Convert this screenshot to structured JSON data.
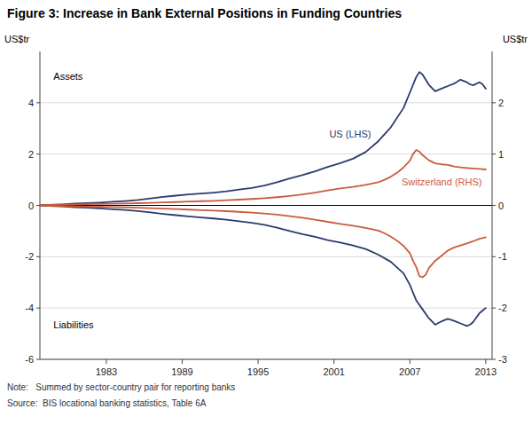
{
  "chart_data": {
    "type": "line",
    "title": "Figure 3: Increase in Bank External Positions in Funding Countries",
    "ylabel": "US$tr",
    "y2label": "US$tr",
    "annotations": [
      "Assets",
      "Liabilities",
      "US (LHS)",
      "Switzerland (RHS)"
    ],
    "note": "Note:   Summed by sector-country pair for reporting banks",
    "source": "Source:  BIS locational banking statistics, Table 6A",
    "xlim": [
      1977.75,
      2013.5
    ],
    "xticks": [
      1983,
      1989,
      1995,
      2001,
      2007,
      2013
    ],
    "ylim": [
      -6,
      6
    ],
    "yticks": [
      -6,
      -4,
      -2,
      0,
      2,
      4
    ],
    "y2lim": [
      -3,
      3
    ],
    "y2ticks": [
      -3,
      -2,
      -1,
      0,
      1,
      2
    ],
    "grid": true,
    "series": [
      {
        "color": "#2d3a6e",
        "axis": "y",
        "x": [
          1977.75,
          1978.5,
          1979.5,
          1980.5,
          1981.5,
          1982.5,
          1983.5,
          1984.5,
          1985.5,
          1986.5,
          1987.5,
          1988.5,
          1989.5,
          1990.5,
          1991.5,
          1992.5,
          1993.5,
          1994.5,
          1995.5,
          1996.5,
          1997.5,
          1998.5,
          1999.5,
          2000.5,
          2001.5,
          2002.5,
          2003.5,
          2004.5,
          2005.5,
          2006.5,
          2007.0,
          2007.5,
          2007.75,
          2008.0,
          2008.5,
          2009.0,
          2009.5,
          2010.0,
          2010.5,
          2011.0,
          2011.5,
          2011.75,
          2012.0,
          2012.5,
          2012.75,
          2013.0
        ],
        "values": [
          0.0,
          0.02,
          0.04,
          0.07,
          0.09,
          0.11,
          0.14,
          0.17,
          0.21,
          0.27,
          0.33,
          0.38,
          0.43,
          0.46,
          0.5,
          0.55,
          0.62,
          0.68,
          0.77,
          0.9,
          1.05,
          1.18,
          1.33,
          1.5,
          1.65,
          1.82,
          2.08,
          2.5,
          3.05,
          3.8,
          4.4,
          5.0,
          5.2,
          5.1,
          4.7,
          4.45,
          4.55,
          4.65,
          4.75,
          4.9,
          4.8,
          4.72,
          4.68,
          4.8,
          4.72,
          4.55
        ]
      },
      {
        "color": "#2d3a6e",
        "axis": "y",
        "x": [
          1977.75,
          1978.5,
          1979.5,
          1980.5,
          1981.5,
          1982.5,
          1983.5,
          1984.5,
          1985.5,
          1986.5,
          1987.5,
          1988.5,
          1989.5,
          1990.5,
          1991.5,
          1992.5,
          1993.5,
          1994.5,
          1995.5,
          1996.5,
          1997.5,
          1998.5,
          1999.5,
          2000.5,
          2001.5,
          2002.5,
          2003.5,
          2004.5,
          2005.5,
          2006.5,
          2007.0,
          2007.5,
          2008.0,
          2008.5,
          2009.0,
          2009.25,
          2009.5,
          2010.0,
          2010.5,
          2011.0,
          2011.5,
          2011.75,
          2012.0,
          2012.5,
          2012.75,
          2013.0
        ],
        "values": [
          0.0,
          -0.02,
          -0.04,
          -0.07,
          -0.09,
          -0.12,
          -0.15,
          -0.18,
          -0.22,
          -0.27,
          -0.33,
          -0.38,
          -0.43,
          -0.47,
          -0.51,
          -0.56,
          -0.62,
          -0.68,
          -0.76,
          -0.87,
          -1.0,
          -1.12,
          -1.22,
          -1.35,
          -1.45,
          -1.56,
          -1.7,
          -1.92,
          -2.2,
          -2.65,
          -3.1,
          -3.7,
          -4.05,
          -4.4,
          -4.65,
          -4.58,
          -4.52,
          -4.42,
          -4.5,
          -4.6,
          -4.7,
          -4.65,
          -4.55,
          -4.2,
          -4.1,
          -4.0
        ]
      },
      {
        "color": "#c95c3f",
        "axis": "y2",
        "x": [
          1977.75,
          1978.5,
          1979.5,
          1980.5,
          1981.5,
          1982.5,
          1983.5,
          1984.5,
          1985.5,
          1986.5,
          1987.5,
          1988.5,
          1989.5,
          1990.5,
          1991.5,
          1992.5,
          1993.5,
          1994.5,
          1995.5,
          1996.5,
          1997.5,
          1998.5,
          1999.5,
          2000.5,
          2001.5,
          2002.5,
          2003.5,
          2004.5,
          2005.0,
          2005.5,
          2006.0,
          2006.5,
          2007.0,
          2007.25,
          2007.5,
          2007.75,
          2008.0,
          2008.5,
          2009.0,
          2009.5,
          2010.0,
          2010.5,
          2011.0,
          2011.5,
          2012.0,
          2012.5,
          2013.0
        ],
        "values": [
          0.0,
          0.01,
          0.015,
          0.02,
          0.025,
          0.028,
          0.032,
          0.038,
          0.043,
          0.05,
          0.058,
          0.065,
          0.075,
          0.082,
          0.09,
          0.1,
          0.112,
          0.125,
          0.14,
          0.16,
          0.185,
          0.215,
          0.25,
          0.29,
          0.33,
          0.36,
          0.4,
          0.45,
          0.5,
          0.56,
          0.64,
          0.74,
          0.87,
          1.0,
          1.08,
          1.05,
          0.98,
          0.88,
          0.82,
          0.8,
          0.79,
          0.76,
          0.74,
          0.73,
          0.72,
          0.71,
          0.7
        ]
      },
      {
        "color": "#c95c3f",
        "axis": "y2",
        "x": [
          1977.75,
          1978.5,
          1979.5,
          1980.5,
          1981.5,
          1982.5,
          1983.5,
          1984.5,
          1985.5,
          1986.5,
          1987.5,
          1988.5,
          1989.5,
          1990.5,
          1991.5,
          1992.5,
          1993.5,
          1994.5,
          1995.5,
          1996.5,
          1997.5,
          1998.5,
          1999.5,
          2000.5,
          2001.5,
          2002.5,
          2003.5,
          2004.5,
          2005.0,
          2005.5,
          2006.0,
          2006.5,
          2007.0,
          2007.25,
          2007.5,
          2007.75,
          2008.0,
          2008.25,
          2008.5,
          2009.0,
          2009.5,
          2010.0,
          2010.5,
          2011.0,
          2011.5,
          2012.0,
          2012.5,
          2013.0
        ],
        "values": [
          0.0,
          -0.01,
          -0.015,
          -0.02,
          -0.025,
          -0.028,
          -0.032,
          -0.038,
          -0.045,
          -0.053,
          -0.062,
          -0.07,
          -0.082,
          -0.092,
          -0.1,
          -0.112,
          -0.125,
          -0.14,
          -0.158,
          -0.18,
          -0.208,
          -0.24,
          -0.278,
          -0.32,
          -0.36,
          -0.395,
          -0.438,
          -0.49,
          -0.545,
          -0.61,
          -0.69,
          -0.79,
          -0.93,
          -1.08,
          -1.2,
          -1.38,
          -1.4,
          -1.35,
          -1.22,
          -1.08,
          -0.98,
          -0.88,
          -0.82,
          -0.78,
          -0.74,
          -0.7,
          -0.65,
          -0.62
        ]
      }
    ]
  }
}
